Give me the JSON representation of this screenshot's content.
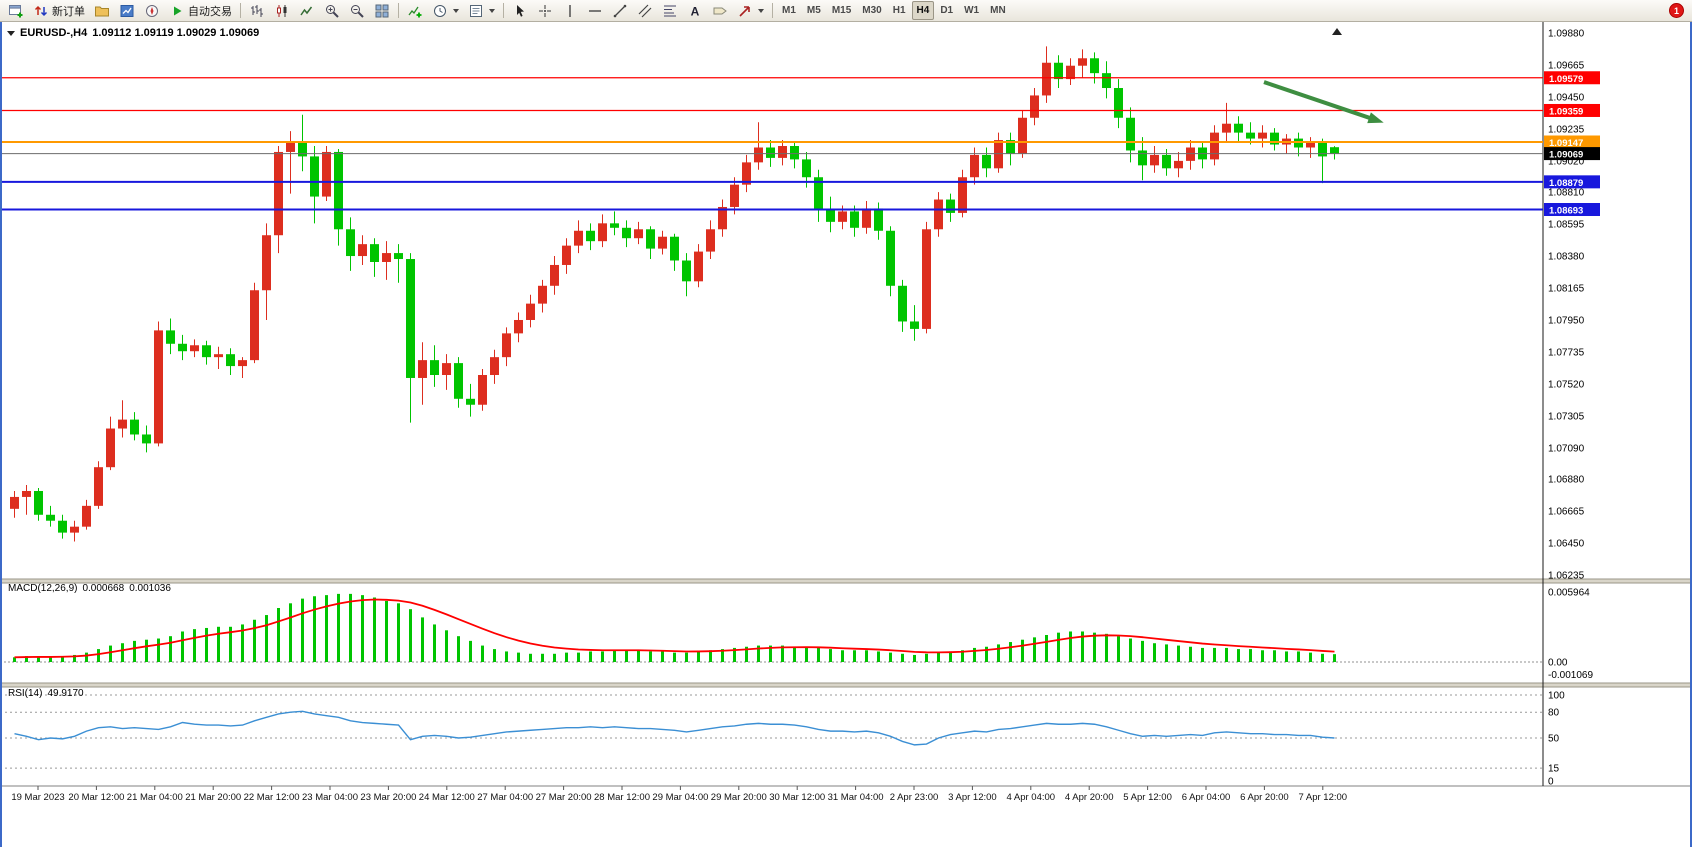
{
  "toolbar": {
    "new_order_label": "新订单",
    "autotrade_label": "自动交易",
    "timeframes": [
      "M1",
      "M5",
      "M15",
      "M30",
      "H1",
      "H4",
      "D1",
      "W1",
      "MN"
    ],
    "active_timeframe": "H4",
    "notification_count": "1",
    "icon_names": [
      "new-chart",
      "new-order",
      "profiles",
      "market-watch",
      "navigator",
      "autotrading-play",
      "bar-chart",
      "candlestick-chart",
      "line-chart",
      "zoom-in",
      "zoom-out",
      "tile-windows",
      "indicators",
      "periods",
      "templates",
      "cursor",
      "crosshair",
      "vertical-line",
      "horizontal-line",
      "trendline",
      "equidistant-channel",
      "fibonacci",
      "text",
      "label",
      "arrow-shapes"
    ]
  },
  "chart": {
    "symbol_period": "EURUSD-,H4",
    "quote_ohlc": "1.09112 1.09119 1.09029 1.09069"
  },
  "indicators": {
    "macd": {
      "name": "MACD(12,26,9)",
      "value_main": "0.000668",
      "value_signal": "0.001036"
    },
    "rsi": {
      "name": "RSI(14)",
      "value": "49.9170"
    }
  },
  "chart_data": [
    {
      "type": "candlestick",
      "symbol": "EURUSD-",
      "period": "H4",
      "ylim": [
        1.06235,
        1.0988
      ],
      "y_ticks": [
        "1.09880",
        "1.09665",
        "1.09450",
        "1.09235",
        "1.09020",
        "1.08810",
        "1.08595",
        "1.08380",
        "1.08165",
        "1.07950",
        "1.07735",
        "1.07520",
        "1.07305",
        "1.07090",
        "1.06880",
        "1.06665",
        "1.06450",
        "1.06235"
      ],
      "x_labels": [
        "19 Mar 2023",
        "20 Mar 12:00",
        "21 Mar 04:00",
        "21 Mar 20:00",
        "22 Mar 12:00",
        "23 Mar 04:00",
        "23 Mar 20:00",
        "24 Mar 12:00",
        "27 Mar 04:00",
        "27 Mar 20:00",
        "28 Mar 12:00",
        "29 Mar 04:00",
        "29 Mar 20:00",
        "30 Mar 12:00",
        "31 Mar 04:00",
        "2 Apr 23:00",
        "3 Apr 12:00",
        "4 Apr 04:00",
        "4 Apr 20:00",
        "5 Apr 12:00",
        "6 Apr 04:00",
        "6 Apr 20:00",
        "7 Apr 12:00"
      ],
      "bull_color": "#dd2e1f",
      "bear_color": "#00c400",
      "levels": [
        {
          "price": 1.09579,
          "color": "#ff0000",
          "label": "1.09579",
          "width": 1.3
        },
        {
          "price": 1.09359,
          "color": "#ff0000",
          "label": "1.09359",
          "width": 1.3
        },
        {
          "price": 1.09147,
          "color": "#ff9900",
          "label": "1.09147",
          "width": 2
        },
        {
          "price": 1.08879,
          "color": "#1818dd",
          "label": "1.08879",
          "width": 2
        },
        {
          "price": 1.08693,
          "color": "#1818dd",
          "label": "1.08693",
          "width": 2
        }
      ],
      "current_price": {
        "price": 1.09069,
        "label": "1.09069",
        "line_color": "#6b6b6b",
        "tag_color": "#000000"
      },
      "annotation_arrow": {
        "from_index": 104.5,
        "from_price": 1.0955,
        "to_index": 114,
        "to_price": 1.0929,
        "color": "#3e8e41"
      },
      "candles": [
        [
          1.0668,
          1.068,
          1.0662,
          1.0676
        ],
        [
          1.0676,
          1.0684,
          1.0664,
          1.068
        ],
        [
          1.068,
          1.0682,
          1.066,
          1.0664
        ],
        [
          1.0664,
          1.067,
          1.0656,
          1.066
        ],
        [
          1.066,
          1.0664,
          1.0648,
          1.0652
        ],
        [
          1.0652,
          1.066,
          1.0646,
          1.0656
        ],
        [
          1.0656,
          1.0674,
          1.0654,
          1.067
        ],
        [
          1.067,
          1.07,
          1.0668,
          1.0696
        ],
        [
          1.0696,
          1.073,
          1.0694,
          1.0722
        ],
        [
          1.0722,
          1.0741,
          1.0716,
          1.0728
        ],
        [
          1.0728,
          1.0733,
          1.0714,
          1.0718
        ],
        [
          1.0718,
          1.0724,
          1.0706,
          1.0712
        ],
        [
          1.0712,
          1.0794,
          1.071,
          1.0788
        ],
        [
          1.0788,
          1.0796,
          1.0772,
          1.0779
        ],
        [
          1.0779,
          1.0785,
          1.0768,
          1.0774
        ],
        [
          1.0774,
          1.0782,
          1.077,
          1.0778
        ],
        [
          1.0778,
          1.0781,
          1.0765,
          1.077
        ],
        [
          1.077,
          1.0777,
          1.0762,
          1.0772
        ],
        [
          1.0772,
          1.0776,
          1.0758,
          1.0764
        ],
        [
          1.0764,
          1.077,
          1.0756,
          1.0768
        ],
        [
          1.0768,
          1.082,
          1.0766,
          1.0815
        ],
        [
          1.0815,
          1.086,
          1.0795,
          1.0852
        ],
        [
          1.0852,
          1.0912,
          1.084,
          1.0908
        ],
        [
          1.0908,
          1.0922,
          1.088,
          1.0915
        ],
        [
          1.0915,
          1.0933,
          1.0895,
          1.0905
        ],
        [
          1.0905,
          1.0912,
          1.086,
          1.0878
        ],
        [
          1.0878,
          1.0912,
          1.0875,
          1.0908
        ],
        [
          1.0908,
          1.091,
          1.0845,
          1.0856
        ],
        [
          1.0856,
          1.0864,
          1.0828,
          1.0838
        ],
        [
          1.0838,
          1.0852,
          1.0832,
          1.0846
        ],
        [
          1.0846,
          1.085,
          1.0824,
          1.0834
        ],
        [
          1.0834,
          1.0848,
          1.0822,
          1.084
        ],
        [
          1.084,
          1.0846,
          1.082,
          1.0836
        ],
        [
          1.0836,
          1.084,
          1.0726,
          1.0756
        ],
        [
          1.0756,
          1.078,
          1.0738,
          1.0768
        ],
        [
          1.0768,
          1.0778,
          1.075,
          1.0758
        ],
        [
          1.0758,
          1.0772,
          1.0748,
          1.0766
        ],
        [
          1.0766,
          1.077,
          1.0736,
          1.0742
        ],
        [
          1.0742,
          1.0752,
          1.073,
          1.0738
        ],
        [
          1.0738,
          1.0762,
          1.0734,
          1.0758
        ],
        [
          1.0758,
          1.0775,
          1.0752,
          1.077
        ],
        [
          1.077,
          1.079,
          1.0764,
          1.0786
        ],
        [
          1.0786,
          1.08,
          1.078,
          1.0795
        ],
        [
          1.0795,
          1.0812,
          1.079,
          1.0806
        ],
        [
          1.0806,
          1.0822,
          1.08,
          1.0818
        ],
        [
          1.0818,
          1.0838,
          1.0812,
          1.0832
        ],
        [
          1.0832,
          1.085,
          1.0826,
          1.0845
        ],
        [
          1.0845,
          1.0862,
          1.084,
          1.0855
        ],
        [
          1.0855,
          1.086,
          1.0842,
          1.0848
        ],
        [
          1.0848,
          1.0866,
          1.0844,
          1.086
        ],
        [
          1.086,
          1.0868,
          1.0852,
          1.0857
        ],
        [
          1.0857,
          1.0862,
          1.0844,
          1.085
        ],
        [
          1.085,
          1.0861,
          1.0846,
          1.0856
        ],
        [
          1.0856,
          1.0858,
          1.0836,
          1.0843
        ],
        [
          1.0843,
          1.0855,
          1.0839,
          1.0851
        ],
        [
          1.0851,
          1.0853,
          1.0828,
          1.0835
        ],
        [
          1.0835,
          1.084,
          1.0811,
          1.0821
        ],
        [
          1.0821,
          1.0846,
          1.0817,
          1.0841
        ],
        [
          1.0841,
          1.0862,
          1.0836,
          1.0856
        ],
        [
          1.0856,
          1.0876,
          1.0851,
          1.0871
        ],
        [
          1.0871,
          1.0891,
          1.0866,
          1.0886
        ],
        [
          1.0886,
          1.0906,
          1.0881,
          1.0901
        ],
        [
          1.0901,
          1.0928,
          1.0896,
          1.0911
        ],
        [
          1.0911,
          1.0916,
          1.0898,
          1.0904
        ],
        [
          1.0904,
          1.0916,
          1.0899,
          1.0912
        ],
        [
          1.0912,
          1.0915,
          1.0897,
          1.0903
        ],
        [
          1.0903,
          1.0908,
          1.0884,
          1.0891
        ],
        [
          1.0891,
          1.0896,
          1.0861,
          1.0869
        ],
        [
          1.0869,
          1.0878,
          1.0854,
          1.0861
        ],
        [
          1.0861,
          1.0872,
          1.0856,
          1.0868
        ],
        [
          1.0868,
          1.0872,
          1.0851,
          1.0857
        ],
        [
          1.0857,
          1.0875,
          1.0853,
          1.087
        ],
        [
          1.087,
          1.0874,
          1.0849,
          1.0855
        ],
        [
          1.0855,
          1.0858,
          1.0811,
          1.0818
        ],
        [
          1.0818,
          1.0822,
          1.0787,
          1.0794
        ],
        [
          1.0794,
          1.0805,
          1.0781,
          1.0789
        ],
        [
          1.0789,
          1.0861,
          1.0786,
          1.0856
        ],
        [
          1.0856,
          1.0881,
          1.0851,
          1.0876
        ],
        [
          1.0876,
          1.088,
          1.0861,
          1.0867
        ],
        [
          1.0867,
          1.0896,
          1.0864,
          1.0891
        ],
        [
          1.0891,
          1.0911,
          1.0886,
          1.0906
        ],
        [
          1.0906,
          1.0911,
          1.0891,
          1.0897
        ],
        [
          1.0897,
          1.0921,
          1.0894,
          1.0916
        ],
        [
          1.0916,
          1.0921,
          1.0899,
          1.0907
        ],
        [
          1.0907,
          1.0936,
          1.0904,
          1.0931
        ],
        [
          1.0931,
          1.0951,
          1.0926,
          1.0946
        ],
        [
          1.0946,
          1.0979,
          1.0941,
          1.0968
        ],
        [
          1.0968,
          1.0973,
          1.0951,
          1.0957
        ],
        [
          1.0957,
          1.0971,
          1.0953,
          1.0966
        ],
        [
          1.0966,
          1.0977,
          1.0958,
          1.0971
        ],
        [
          1.0971,
          1.0975,
          1.0954,
          1.0961
        ],
        [
          1.0961,
          1.0969,
          1.0944,
          1.0951
        ],
        [
          1.0951,
          1.0957,
          1.0924,
          1.0931
        ],
        [
          1.0931,
          1.0938,
          1.0901,
          1.0909
        ],
        [
          1.0909,
          1.0918,
          1.0889,
          1.0899
        ],
        [
          1.0899,
          1.0912,
          1.0894,
          1.0906
        ],
        [
          1.0906,
          1.091,
          1.0892,
          1.0897
        ],
        [
          1.0897,
          1.0908,
          1.0891,
          1.0902
        ],
        [
          1.0902,
          1.0916,
          1.0896,
          1.0911
        ],
        [
          1.0911,
          1.0914,
          1.0897,
          1.0903
        ],
        [
          1.0903,
          1.0926,
          1.0899,
          1.0921
        ],
        [
          1.0921,
          1.0941,
          1.0914,
          1.0927
        ],
        [
          1.0927,
          1.0932,
          1.0915,
          1.0921
        ],
        [
          1.0921,
          1.0928,
          1.0913,
          1.0917
        ],
        [
          1.0917,
          1.0926,
          1.0911,
          1.0921
        ],
        [
          1.0921,
          1.0924,
          1.0909,
          1.0913
        ],
        [
          1.0913,
          1.092,
          1.0907,
          1.0917
        ],
        [
          1.0917,
          1.0921,
          1.0905,
          1.0911
        ],
        [
          1.0911,
          1.0918,
          1.0904,
          1.0915
        ],
        [
          1.0915,
          1.0917,
          1.0887,
          1.0905
        ],
        [
          1.09112,
          1.09119,
          1.09029,
          1.09069
        ]
      ]
    },
    {
      "type": "bar",
      "name": "MACD(12,26,9)",
      "value_main": 0.000668,
      "value_signal": 0.001036,
      "y_ticks": [
        "0.005964",
        "0.00",
        "-0.001069"
      ],
      "ymax": 0.005964,
      "ymin": -0.001069,
      "histogram_color": "#00c400",
      "signal_color": "#ff0000",
      "histogram": [
        0.0004,
        0.0005,
        0.0005,
        0.0004,
        0.0005,
        0.0006,
        0.0008,
        0.0011,
        0.0014,
        0.0016,
        0.0018,
        0.0019,
        0.002,
        0.0022,
        0.0026,
        0.0028,
        0.0029,
        0.003,
        0.003,
        0.0032,
        0.0036,
        0.004,
        0.0046,
        0.005,
        0.0054,
        0.0056,
        0.0057,
        0.0058,
        0.0058,
        0.0057,
        0.0055,
        0.0052,
        0.005,
        0.0045,
        0.0038,
        0.0032,
        0.0027,
        0.0022,
        0.0018,
        0.0014,
        0.0011,
        0.0009,
        0.0008,
        0.0007,
        0.0007,
        0.0007,
        0.0008,
        0.0008,
        0.0009,
        0.0009,
        0.001,
        0.001,
        0.001,
        0.0009,
        0.0009,
        0.0008,
        0.0008,
        0.0009,
        0.001,
        0.0011,
        0.0012,
        0.0013,
        0.0014,
        0.0014,
        0.0014,
        0.0013,
        0.0013,
        0.0012,
        0.0011,
        0.001,
        0.001,
        0.001,
        0.0009,
        0.0008,
        0.0007,
        0.0006,
        0.0007,
        0.0008,
        0.0009,
        0.001,
        0.0012,
        0.0013,
        0.0015,
        0.0017,
        0.0019,
        0.0021,
        0.0023,
        0.0025,
        0.0026,
        0.0026,
        0.0025,
        0.0024,
        0.0022,
        0.002,
        0.0018,
        0.0016,
        0.0015,
        0.0014,
        0.0013,
        0.0012,
        0.0012,
        0.0012,
        0.0011,
        0.0011,
        0.001,
        0.001,
        0.0009,
        0.0009,
        0.0008,
        0.0007,
        0.000668
      ]
    },
    {
      "type": "line",
      "name": "RSI(14)",
      "current": 49.917,
      "y_ticks": [
        "100",
        "80",
        "50",
        "15",
        "0"
      ],
      "levels": [
        100,
        80,
        50,
        15
      ],
      "line_color": "#3b8fd4",
      "values": [
        55,
        52,
        48,
        50,
        49,
        52,
        58,
        62,
        63,
        61,
        62,
        61,
        60,
        63,
        68,
        66,
        65,
        65,
        64,
        65,
        70,
        74,
        78,
        80,
        81,
        78,
        76,
        74,
        70,
        68,
        67,
        66,
        65,
        48,
        52,
        53,
        52,
        50,
        51,
        53,
        55,
        57,
        58,
        59,
        60,
        61,
        62,
        62,
        63,
        62,
        63,
        62,
        61,
        61,
        60,
        59,
        57,
        59,
        61,
        63,
        64,
        66,
        67,
        66,
        66,
        65,
        63,
        60,
        58,
        58,
        57,
        58,
        56,
        52,
        46,
        42,
        43,
        50,
        54,
        56,
        58,
        57,
        60,
        61,
        63,
        65,
        67,
        66,
        66,
        67,
        66,
        63,
        59,
        55,
        52,
        53,
        52,
        53,
        54,
        53,
        56,
        57,
        56,
        55,
        55,
        54,
        54,
        53,
        53,
        51,
        50
      ]
    }
  ]
}
